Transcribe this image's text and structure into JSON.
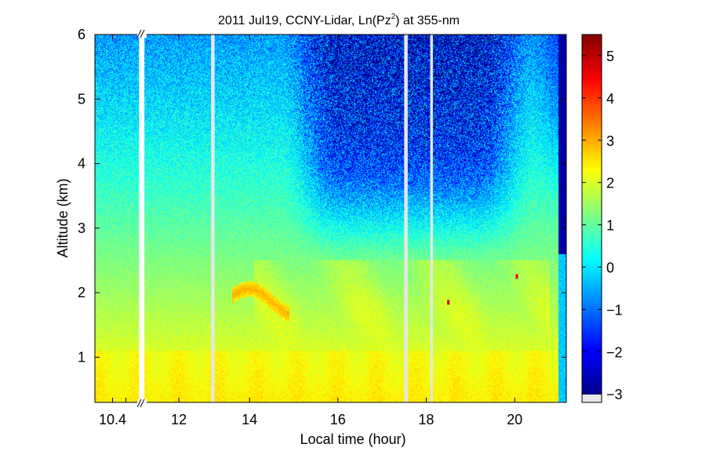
{
  "chart_data": {
    "type": "heatmap",
    "title": "2011 Jul19, CCNY-Lidar, Ln(Pz",
    "title_sup": "2",
    "title_suffix": ") at 355-nm",
    "xlabel": "Local time (hour)",
    "ylabel": "Altitude (km)",
    "xlim": [
      10.0,
      20.67
    ],
    "ylim": [
      0.3,
      6.0
    ],
    "x_ticks": [
      {
        "value": 10.4,
        "label": "10.4"
      },
      {
        "value": 11.9,
        "label": "12"
      },
      {
        "value": 13.5,
        "label": "14"
      },
      {
        "value": 15.5,
        "label": "16"
      },
      {
        "value": 17.5,
        "label": "18"
      },
      {
        "value": 19.5,
        "label": "20"
      }
    ],
    "x_minor_ticks": [
      10.7
    ],
    "axis_break_x": 11.1,
    "y_ticks": [
      1,
      2,
      3,
      4,
      5,
      6
    ],
    "colorbar": {
      "min": -3.2,
      "max": 5.5,
      "ticks": [
        -3,
        -2,
        -1,
        0,
        1,
        2,
        3,
        4,
        5
      ],
      "colormap": "jet"
    },
    "missing_data_bands": [
      {
        "x_start": 11.0,
        "x_end": 11.12
      },
      {
        "x_start": 12.63,
        "x_end": 12.71
      },
      {
        "x_start": 17.0,
        "x_end": 17.08
      },
      {
        "x_start": 17.59,
        "x_end": 17.65
      }
    ],
    "features": [
      {
        "name": "boundary-layer",
        "x_start": 10.0,
        "x_end": 20.67,
        "top_km": 1.1,
        "value": 2.4
      },
      {
        "name": "residual-layer",
        "x_start": 13.6,
        "x_end": 20.3,
        "top_km": 2.5,
        "value": 1.7
      },
      {
        "name": "elevated-aerosol-layer",
        "x_start": 13.1,
        "x_end": 14.4,
        "altitude_km": 1.95,
        "value": 2.9
      },
      {
        "name": "cloud-return",
        "x": 18.0,
        "altitude_km": 1.85,
        "value": 4.8
      },
      {
        "name": "cloud-return",
        "x": 19.55,
        "altitude_km": 2.25,
        "value": 4.6
      }
    ]
  }
}
